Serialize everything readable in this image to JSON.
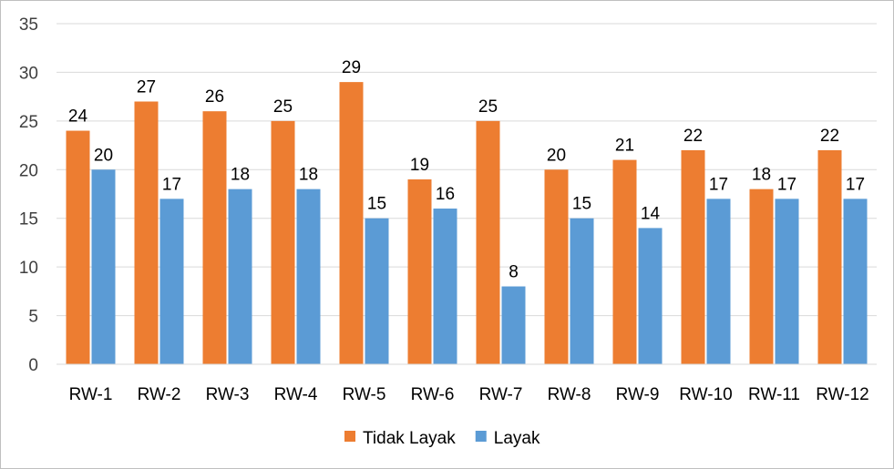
{
  "chart_data": {
    "type": "bar",
    "categories": [
      "RW-1",
      "RW-2",
      "RW-3",
      "RW-4",
      "RW-5",
      "RW-6",
      "RW-7",
      "RW-8",
      "RW-9",
      "RW-10",
      "RW-11",
      "RW-12"
    ],
    "series": [
      {
        "name": "Tidak Layak",
        "color": "#ED7D31",
        "values": [
          24,
          27,
          26,
          25,
          29,
          19,
          25,
          20,
          21,
          22,
          18,
          22
        ]
      },
      {
        "name": "Layak",
        "color": "#5B9BD5",
        "values": [
          20,
          17,
          18,
          18,
          15,
          16,
          8,
          15,
          14,
          17,
          17,
          17
        ]
      }
    ],
    "ylim": [
      0,
      35
    ],
    "yticks": [
      0,
      5,
      10,
      15,
      20,
      25,
      30,
      35
    ],
    "grid": true,
    "legend_position": "bottom",
    "data_labels": true
  }
}
